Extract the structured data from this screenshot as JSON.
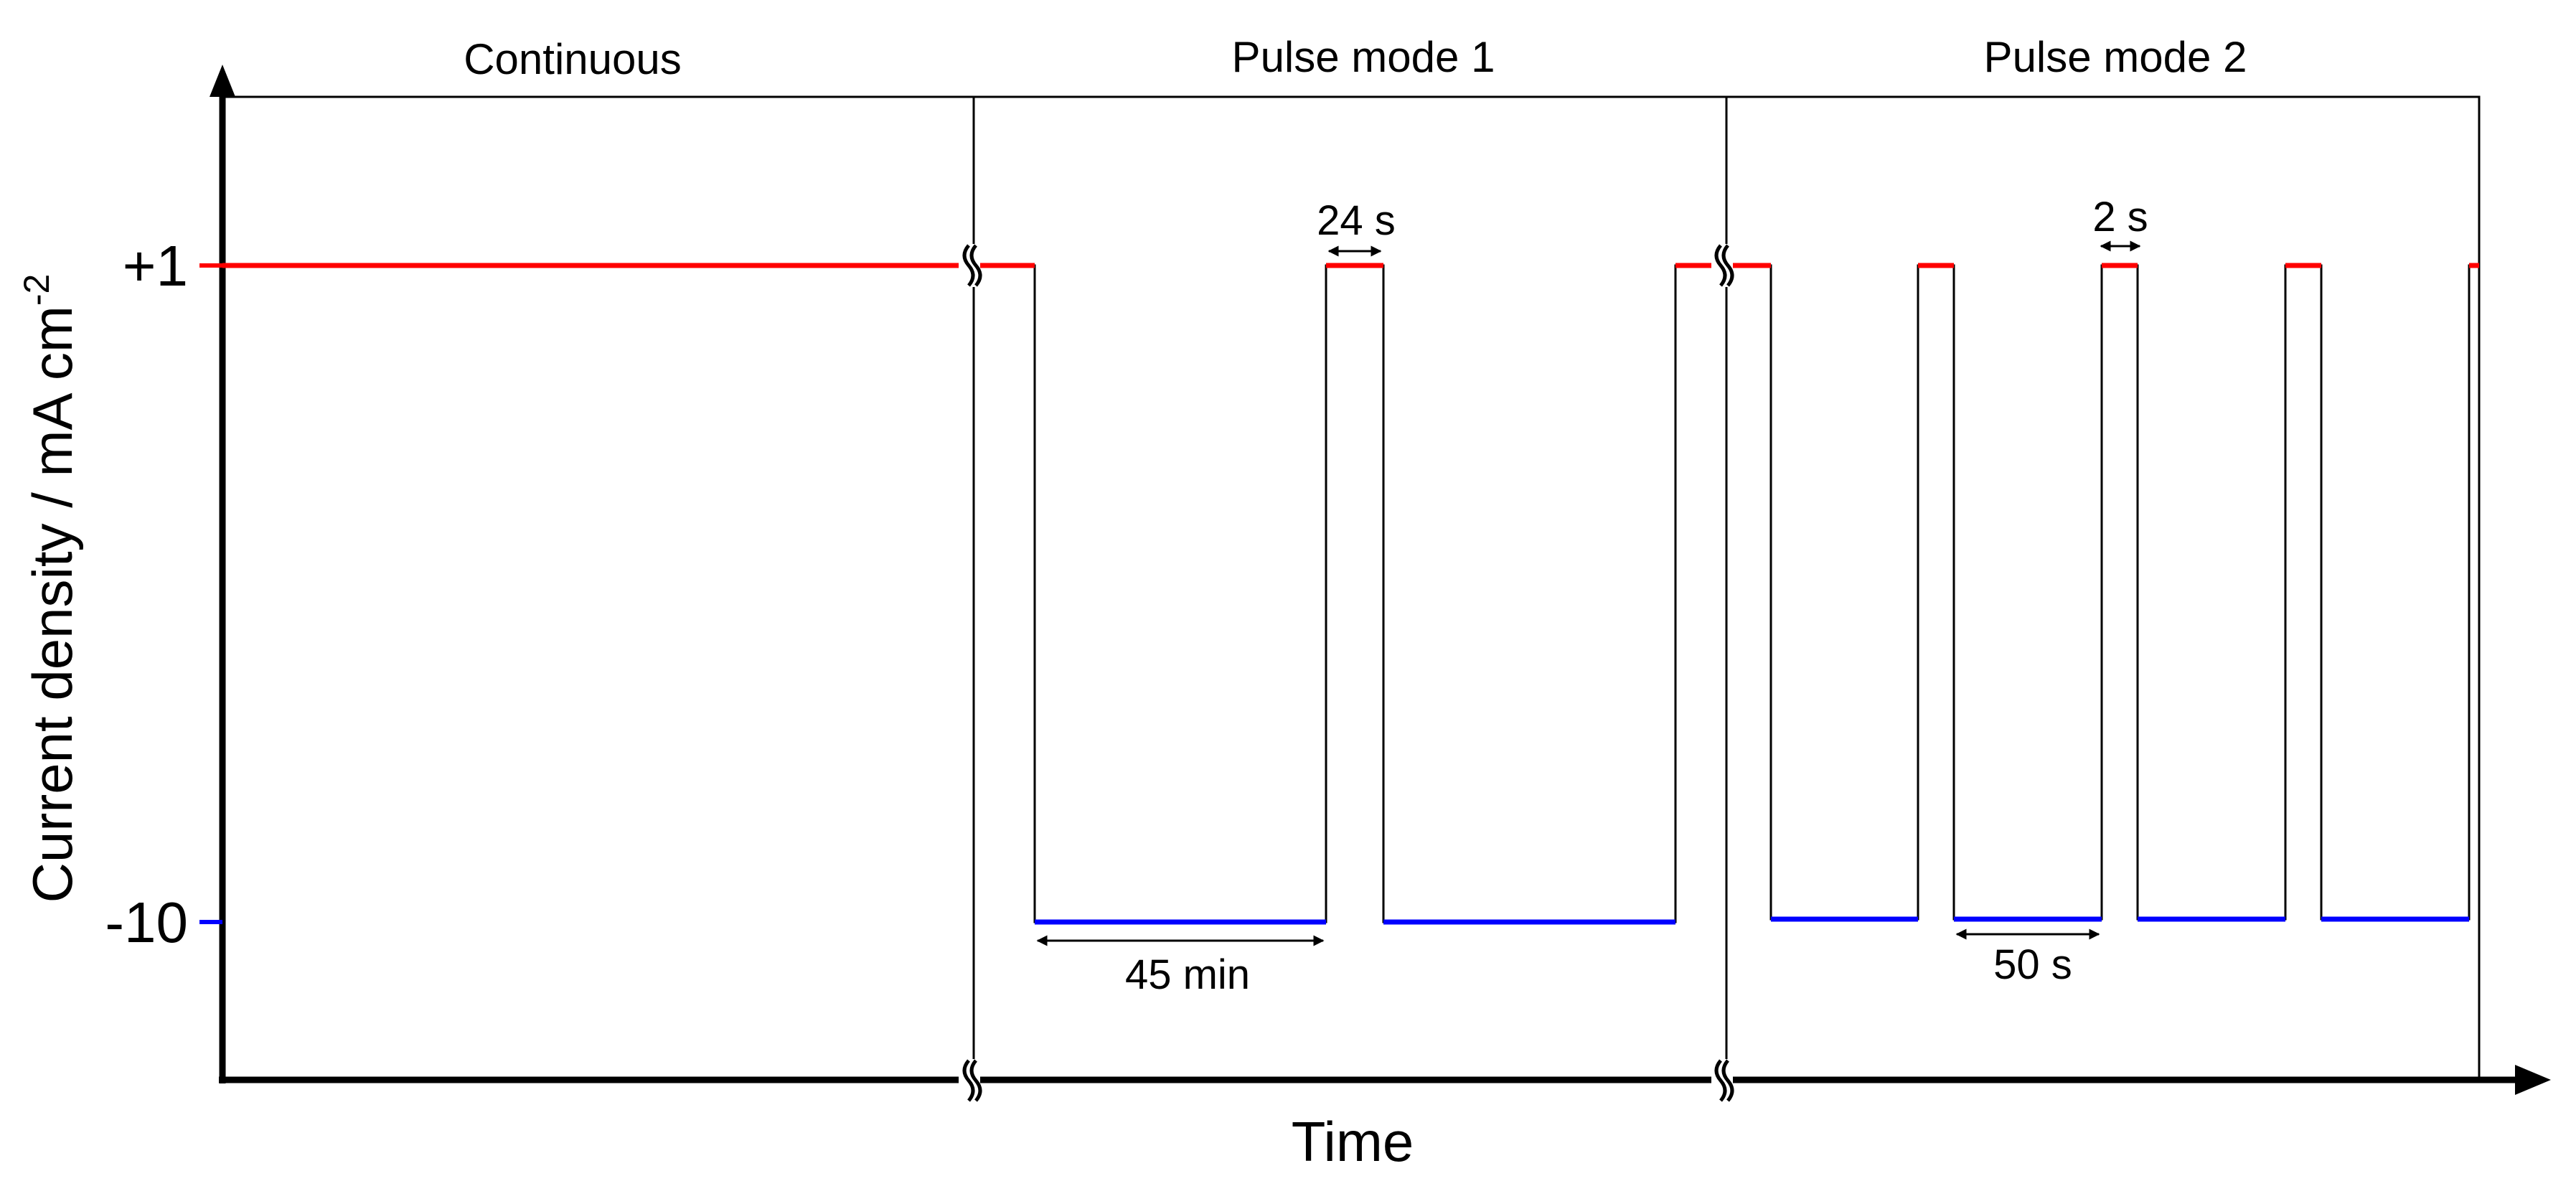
{
  "chart_data": {
    "type": "line",
    "step": true,
    "panels": [
      {
        "title": "Continuous"
      },
      {
        "title": "Pulse mode 1"
      },
      {
        "title": "Pulse mode 2"
      }
    ],
    "y_ticks": [
      "+1",
      "-10"
    ],
    "ylabel": "Current density / mA cm",
    "ylabel_sup": "-2",
    "xlabel": "Time",
    "annotations": {
      "pulse1_short": "24 s",
      "pulse1_long": "45 min",
      "pulse2_short": "2 s",
      "pulse2_long": "50 s"
    },
    "colors": {
      "positive_level": "#ff0000",
      "negative_level": "#0000ff",
      "axis": "#000000"
    },
    "axis_breaks": true
  }
}
